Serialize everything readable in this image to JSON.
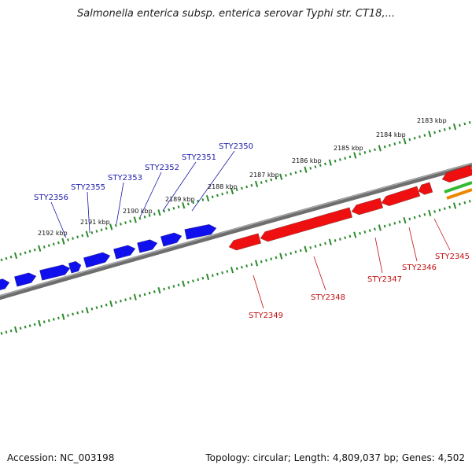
{
  "title": "Salmonella enterica subsp. enterica serovar Typhi str. CT18,...",
  "footer": {
    "accession": "Accession: NC_003198",
    "info": "Topology: circular; Length: 4,809,037 bp; Genes: 4,502"
  },
  "colors": {
    "forward_gene": "#1010ee",
    "reverse_gene": "#ee1010",
    "backbone": "#808080",
    "tick": "#2a8a2a",
    "feature_green": "#33bb33",
    "feature_orange": "#ee8800"
  },
  "ticks": [
    {
      "label": "2183 kbp"
    },
    {
      "label": "2184 kbp"
    },
    {
      "label": "2185 kbp"
    },
    {
      "label": "2186 kbp"
    },
    {
      "label": "2187 kbp"
    },
    {
      "label": "2188 kbp"
    },
    {
      "label": "2189 kbp"
    },
    {
      "label": "2190 kbp"
    },
    {
      "label": "2191 kbp"
    },
    {
      "label": "2192 kbp"
    }
  ],
  "genes_forward": [
    {
      "name": "STY2350"
    },
    {
      "name": "STY2351"
    },
    {
      "name": "STY2352"
    },
    {
      "name": "STY2353"
    },
    {
      "name": "STY2355"
    },
    {
      "name": "STY2356"
    }
  ],
  "genes_reverse": [
    {
      "name": "STY2345"
    },
    {
      "name": "STY2346"
    },
    {
      "name": "STY2347"
    },
    {
      "name": "STY2348"
    },
    {
      "name": "STY2349"
    }
  ]
}
